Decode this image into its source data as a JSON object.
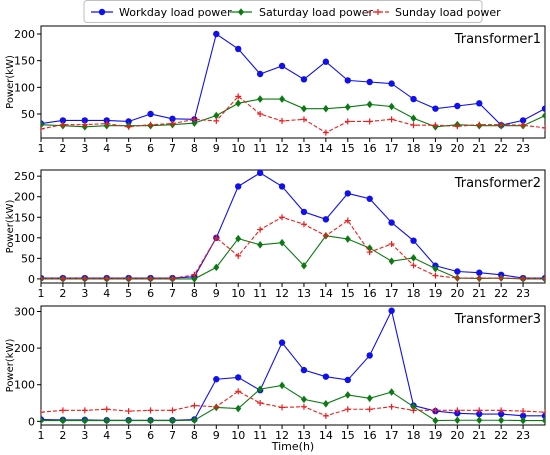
{
  "colors": {
    "workday": "#1010ee",
    "saturday": "#0c7a12",
    "sunday": "#ee1c1c",
    "axis": "#000000",
    "legend_border": "#bfbfbf"
  },
  "chart_data": {
    "type": "line",
    "legend": {
      "placement": "top-center",
      "entries": [
        {
          "name": "Workday load power",
          "marker": "circle",
          "style": "solid",
          "color": "#1010ee"
        },
        {
          "name": "Saturday load power",
          "marker": "diamond",
          "style": "solid",
          "color": "#0c7a12"
        },
        {
          "name": "Sunday load power",
          "marker": "plus",
          "style": "dashed",
          "color": "#ee1c1c"
        }
      ]
    },
    "xlabel": "Time(h)",
    "x": [
      1,
      2,
      3,
      4,
      5,
      6,
      7,
      8,
      9,
      10,
      11,
      12,
      13,
      14,
      15,
      16,
      17,
      18,
      19,
      20,
      21,
      22,
      23,
      24
    ],
    "xticks": [
      1,
      2,
      3,
      4,
      5,
      6,
      7,
      8,
      9,
      10,
      11,
      12,
      13,
      14,
      15,
      16,
      17,
      18,
      19,
      20,
      21,
      22,
      23
    ],
    "xlim": [
      1,
      24
    ],
    "panels": [
      {
        "title": "Transformer1",
        "ylabel": "Power(kW)",
        "ylim": [
          5,
          215
        ],
        "yticks": [
          50,
          100,
          150,
          200
        ],
        "series": [
          {
            "name": "Workday load power",
            "values": [
              32,
              38,
              38,
              38,
              36,
              50,
              41,
              40,
              200,
              172,
              125,
              140,
              115,
              148,
              113,
              110,
              107,
              78,
              60,
              65,
              70,
              29,
              38,
              60
            ]
          },
          {
            "name": "Saturday load power",
            "values": [
              30,
              28,
              26,
              28,
              28,
              28,
              30,
              33,
              47,
              70,
              78,
              78,
              60,
              60,
              63,
              68,
              64,
              42,
              26,
              30,
              28,
              28,
              28,
              47
            ]
          },
          {
            "name": "Sunday load power",
            "values": [
              22,
              30,
              30,
              32,
              26,
              30,
              32,
              40,
              37,
              83,
              50,
              37,
              40,
              15,
              36,
              36,
              40,
              29,
              29,
              27,
              30,
              30,
              29,
              24
            ]
          }
        ]
      },
      {
        "title": "Transformer2",
        "ylabel": "Power(kW)",
        "ylim": [
          -10,
          265
        ],
        "yticks": [
          0,
          50,
          100,
          150,
          200,
          250
        ],
        "series": [
          {
            "name": "Workday load power",
            "values": [
              2,
              2,
              2,
              2,
              2,
              2,
              2,
              5,
              100,
              225,
              258,
              225,
              163,
              145,
              208,
              195,
              137,
              93,
              32,
              18,
              15,
              10,
              2,
              2
            ]
          },
          {
            "name": "Saturday load power",
            "values": [
              0,
              0,
              0,
              0,
              0,
              0,
              0,
              0,
              28,
              98,
              83,
              88,
              32,
              105,
              97,
              75,
              43,
              51,
              25,
              2,
              1,
              2,
              0,
              0
            ]
          },
          {
            "name": "Sunday load power",
            "values": [
              1,
              1,
              1,
              1,
              1,
              1,
              1,
              10,
              100,
              56,
              120,
              150,
              133,
              105,
              142,
              65,
              85,
              33,
              8,
              2,
              2,
              2,
              1,
              1
            ]
          }
        ]
      },
      {
        "title": "Transformer3",
        "ylabel": "Power(kW)",
        "ylim": [
          -10,
          315
        ],
        "yticks": [
          0,
          100,
          200,
          300
        ],
        "series": [
          {
            "name": "Workday load power",
            "values": [
              5,
              4,
              4,
              3,
              3,
              3,
              3,
              5,
              115,
              120,
              85,
              215,
              140,
              122,
              113,
              180,
              302,
              43,
              28,
              22,
              20,
              20,
              15,
              15
            ]
          },
          {
            "name": "Saturday load power",
            "values": [
              2,
              2,
              2,
              2,
              2,
              2,
              2,
              3,
              38,
              35,
              88,
              98,
              60,
              48,
              72,
              63,
              80,
              40,
              2,
              3,
              3,
              3,
              2,
              2
            ]
          },
          {
            "name": "Sunday load power",
            "values": [
              25,
              30,
              30,
              33,
              28,
              30,
              30,
              43,
              40,
              82,
              50,
              38,
              40,
              15,
              33,
              33,
              40,
              30,
              30,
              30,
              30,
              30,
              28,
              25
            ]
          }
        ]
      }
    ]
  }
}
